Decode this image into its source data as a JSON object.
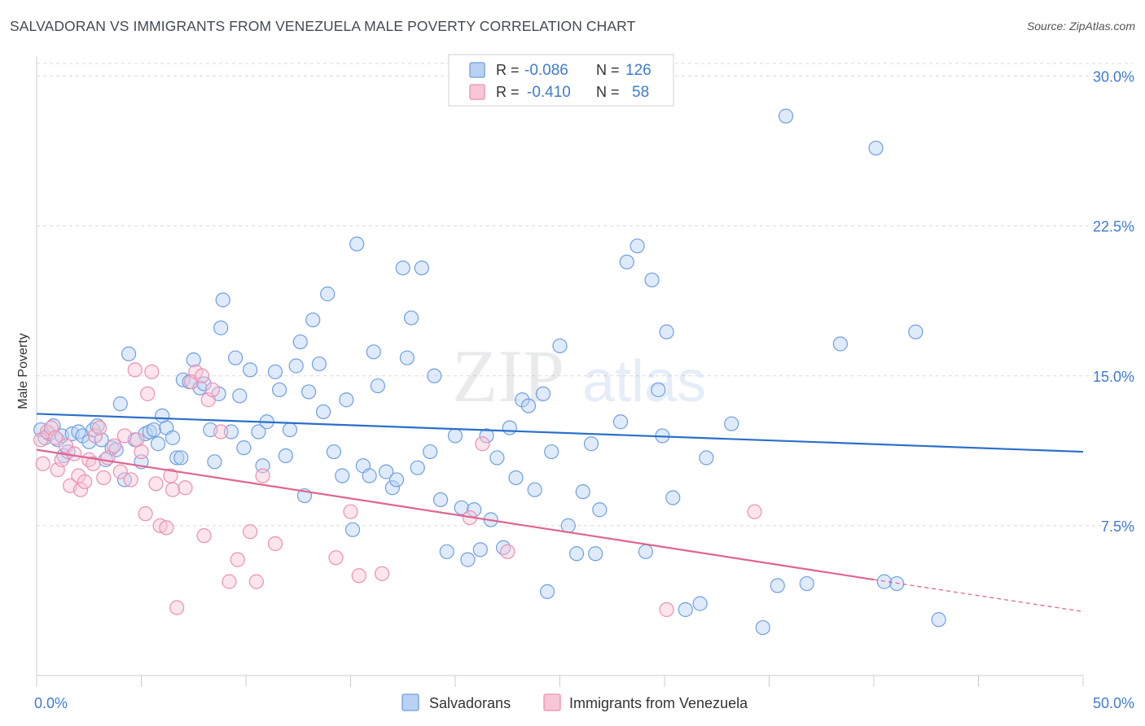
{
  "title": "SALVADORAN VS IMMIGRANTS FROM VENEZUELA MALE POVERTY CORRELATION CHART",
  "source": "Source: ZipAtlas.com",
  "watermark": {
    "left": "ZIP",
    "right": "atlas"
  },
  "colors": {
    "blue": "#6f9fe0",
    "blue_fill": "#b9d2f3",
    "blue_line": "#2b6fc9",
    "pink": "#ec8fb0",
    "pink_fill": "#f8c6d7",
    "pink_line": "#e0658f",
    "tick_text": "#3f7bd0",
    "grid": "#d9d9d9"
  },
  "legend_top": {
    "rows": [
      {
        "r_label": "R =",
        "r_value": "-0.086",
        "n_label": "N =",
        "n_value": "126"
      },
      {
        "r_label": "R =",
        "r_value": "-0.410",
        "n_label": "N =",
        "n_value": "58"
      }
    ]
  },
  "chart_data": {
    "type": "scatter",
    "title": "SALVADORAN VS IMMIGRANTS FROM VENEZUELA MALE POVERTY CORRELATION CHART",
    "xlabel": "",
    "ylabel": "Male Poverty",
    "xlim": [
      0,
      50
    ],
    "ylim": [
      0,
      31
    ],
    "x_tick_labels": [
      "0.0%",
      "50.0%"
    ],
    "y_ticks": [
      7.5,
      15.0,
      22.5,
      30.0
    ],
    "y_tick_labels": [
      "7.5%",
      "15.0%",
      "22.5%",
      "30.0%"
    ],
    "grid": true,
    "legend_position": "bottom",
    "series": [
      {
        "name": "Salvadorans",
        "r": -0.086,
        "n": 126,
        "trend": {
          "x": [
            0,
            50
          ],
          "y": [
            13.1,
            11.2
          ]
        },
        "points": [
          [
            0.2,
            12.3
          ],
          [
            0.4,
            11.9
          ],
          [
            0.6,
            12.1
          ],
          [
            0.8,
            12.5
          ],
          [
            1.0,
            11.8
          ],
          [
            1.2,
            12.0
          ],
          [
            1.3,
            11.0
          ],
          [
            1.5,
            11.2
          ],
          [
            1.7,
            12.1
          ],
          [
            2.0,
            12.2
          ],
          [
            2.2,
            12.0
          ],
          [
            2.5,
            11.7
          ],
          [
            2.7,
            12.3
          ],
          [
            2.9,
            12.5
          ],
          [
            3.1,
            11.8
          ],
          [
            3.3,
            10.8
          ],
          [
            3.6,
            11.4
          ],
          [
            3.8,
            11.3
          ],
          [
            4.0,
            13.6
          ],
          [
            4.2,
            9.8
          ],
          [
            4.4,
            16.1
          ],
          [
            4.7,
            11.8
          ],
          [
            5.0,
            10.7
          ],
          [
            5.2,
            12.1
          ],
          [
            5.4,
            12.2
          ],
          [
            5.6,
            12.3
          ],
          [
            5.8,
            11.6
          ],
          [
            6.0,
            13.0
          ],
          [
            6.2,
            12.4
          ],
          [
            6.5,
            11.9
          ],
          [
            6.7,
            10.9
          ],
          [
            6.9,
            10.9
          ],
          [
            7.0,
            14.8
          ],
          [
            7.3,
            14.7
          ],
          [
            7.5,
            15.8
          ],
          [
            7.8,
            14.4
          ],
          [
            8.0,
            14.6
          ],
          [
            8.3,
            12.3
          ],
          [
            8.5,
            10.7
          ],
          [
            8.7,
            14.1
          ],
          [
            8.8,
            17.4
          ],
          [
            8.9,
            18.8
          ],
          [
            9.3,
            12.2
          ],
          [
            9.5,
            15.9
          ],
          [
            9.7,
            14.0
          ],
          [
            9.9,
            11.4
          ],
          [
            10.2,
            15.3
          ],
          [
            10.6,
            12.2
          ],
          [
            10.8,
            10.5
          ],
          [
            11.0,
            12.7
          ],
          [
            11.4,
            15.2
          ],
          [
            11.6,
            14.3
          ],
          [
            11.9,
            11.0
          ],
          [
            12.1,
            12.3
          ],
          [
            12.4,
            15.5
          ],
          [
            12.6,
            16.7
          ],
          [
            12.8,
            9.0
          ],
          [
            13.0,
            14.2
          ],
          [
            13.2,
            17.8
          ],
          [
            13.5,
            15.6
          ],
          [
            13.7,
            13.2
          ],
          [
            13.9,
            19.1
          ],
          [
            14.2,
            11.2
          ],
          [
            14.6,
            10.0
          ],
          [
            14.8,
            13.8
          ],
          [
            15.1,
            7.3
          ],
          [
            15.3,
            21.6
          ],
          [
            15.6,
            10.5
          ],
          [
            15.9,
            10.0
          ],
          [
            16.1,
            16.2
          ],
          [
            16.3,
            14.5
          ],
          [
            16.7,
            10.2
          ],
          [
            17.0,
            9.4
          ],
          [
            17.2,
            9.8
          ],
          [
            17.5,
            20.4
          ],
          [
            17.7,
            15.9
          ],
          [
            17.9,
            17.9
          ],
          [
            18.2,
            10.4
          ],
          [
            18.4,
            20.4
          ],
          [
            18.8,
            11.2
          ],
          [
            19.0,
            15.0
          ],
          [
            19.3,
            8.8
          ],
          [
            19.6,
            6.2
          ],
          [
            20.0,
            12.0
          ],
          [
            20.3,
            8.4
          ],
          [
            20.6,
            5.8
          ],
          [
            20.9,
            8.3
          ],
          [
            21.2,
            6.3
          ],
          [
            21.5,
            12.0
          ],
          [
            21.7,
            7.8
          ],
          [
            22.0,
            10.9
          ],
          [
            22.3,
            6.4
          ],
          [
            22.6,
            12.4
          ],
          [
            22.9,
            9.9
          ],
          [
            23.2,
            13.8
          ],
          [
            23.5,
            13.5
          ],
          [
            23.8,
            9.3
          ],
          [
            24.2,
            14.1
          ],
          [
            24.4,
            4.2
          ],
          [
            24.6,
            11.2
          ],
          [
            25.0,
            16.5
          ],
          [
            25.4,
            7.5
          ],
          [
            25.8,
            6.1
          ],
          [
            26.1,
            9.2
          ],
          [
            26.5,
            11.6
          ],
          [
            26.7,
            6.1
          ],
          [
            26.9,
            8.3
          ],
          [
            27.9,
            12.7
          ],
          [
            28.2,
            20.7
          ],
          [
            28.7,
            21.5
          ],
          [
            29.1,
            6.2
          ],
          [
            29.4,
            19.8
          ],
          [
            29.7,
            14.3
          ],
          [
            29.9,
            12.0
          ],
          [
            30.1,
            17.2
          ],
          [
            30.4,
            8.9
          ],
          [
            31.0,
            3.3
          ],
          [
            31.7,
            3.6
          ],
          [
            32.0,
            10.9
          ],
          [
            33.2,
            12.6
          ],
          [
            34.7,
            2.4
          ],
          [
            35.4,
            4.5
          ],
          [
            35.8,
            28.0
          ],
          [
            36.8,
            4.6
          ],
          [
            38.4,
            16.6
          ],
          [
            40.1,
            26.4
          ],
          [
            41.1,
            4.6
          ],
          [
            42.0,
            17.2
          ],
          [
            43.1,
            2.8
          ],
          [
            40.5,
            4.7
          ]
        ]
      },
      {
        "name": "Immigrants from Venezuela",
        "r": -0.41,
        "n": 58,
        "trend": {
          "x": [
            0,
            40
          ],
          "y": [
            11.3,
            4.8
          ]
        },
        "trend_dashed": {
          "x": [
            40,
            50
          ],
          "y": [
            4.8,
            3.2
          ]
        },
        "points": [
          [
            0.2,
            11.8
          ],
          [
            0.3,
            10.6
          ],
          [
            0.5,
            12.2
          ],
          [
            0.7,
            12.4
          ],
          [
            0.9,
            11.9
          ],
          [
            1.0,
            10.3
          ],
          [
            1.2,
            10.8
          ],
          [
            1.4,
            11.5
          ],
          [
            1.6,
            9.5
          ],
          [
            1.8,
            11.1
          ],
          [
            2.0,
            10.0
          ],
          [
            2.1,
            9.3
          ],
          [
            2.3,
            9.7
          ],
          [
            2.5,
            10.8
          ],
          [
            2.7,
            10.6
          ],
          [
            2.8,
            12.0
          ],
          [
            3.0,
            12.4
          ],
          [
            3.2,
            9.9
          ],
          [
            3.4,
            10.9
          ],
          [
            3.7,
            11.5
          ],
          [
            4.0,
            10.2
          ],
          [
            4.2,
            12.0
          ],
          [
            4.5,
            9.8
          ],
          [
            4.7,
            15.3
          ],
          [
            4.8,
            11.8
          ],
          [
            5.0,
            11.2
          ],
          [
            5.2,
            8.1
          ],
          [
            5.3,
            14.1
          ],
          [
            5.5,
            15.2
          ],
          [
            5.7,
            9.6
          ],
          [
            5.9,
            7.5
          ],
          [
            6.2,
            7.4
          ],
          [
            6.4,
            10.0
          ],
          [
            6.5,
            9.3
          ],
          [
            6.7,
            3.4
          ],
          [
            7.1,
            9.4
          ],
          [
            7.4,
            14.7
          ],
          [
            7.6,
            15.2
          ],
          [
            7.9,
            15.0
          ],
          [
            8.0,
            7.0
          ],
          [
            8.2,
            13.8
          ],
          [
            8.4,
            14.3
          ],
          [
            8.8,
            12.2
          ],
          [
            9.2,
            4.7
          ],
          [
            9.6,
            5.8
          ],
          [
            10.2,
            7.2
          ],
          [
            10.5,
            4.7
          ],
          [
            10.8,
            10.0
          ],
          [
            11.4,
            6.6
          ],
          [
            14.3,
            5.9
          ],
          [
            15.0,
            8.2
          ],
          [
            15.4,
            5.0
          ],
          [
            16.5,
            5.1
          ],
          [
            20.7,
            7.9
          ],
          [
            21.3,
            11.6
          ],
          [
            22.5,
            6.2
          ],
          [
            30.1,
            3.3
          ],
          [
            34.3,
            8.2
          ]
        ]
      }
    ]
  }
}
